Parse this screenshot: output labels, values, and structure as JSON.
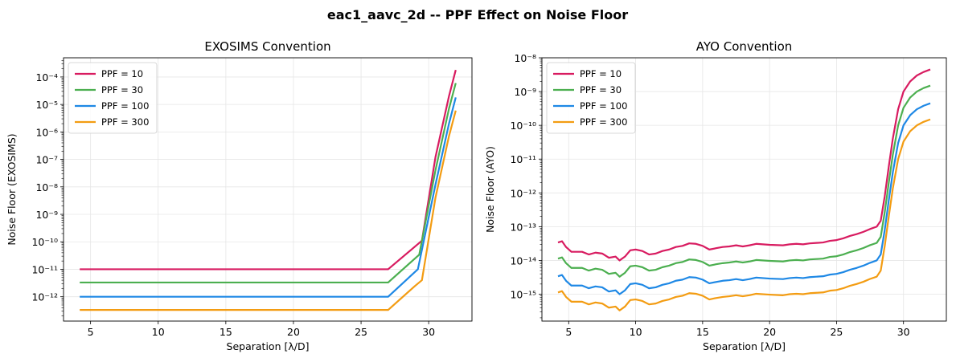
{
  "figure": {
    "suptitle": "eac1_aavc_2d -- PPF Effect on Noise Floor"
  },
  "chart_data": [
    {
      "type": "line",
      "title": "EXOSIMS Convention",
      "xlabel": "Separation [λ/D]",
      "ylabel": "Noise Floor (EXOSIMS)",
      "xscale": "linear",
      "yscale": "log",
      "xlim": [
        3,
        33.2
      ],
      "ylim": [
        1.3e-13,
        0.0005
      ],
      "xticks": [
        5,
        10,
        15,
        20,
        25,
        30
      ],
      "xtick_labels": [
        "5",
        "10",
        "15",
        "20",
        "25",
        "30"
      ],
      "yticks_exp": [
        -12,
        -11,
        -10,
        -9,
        -8,
        -7,
        -6,
        -5,
        -4
      ],
      "grid": true,
      "legend": "top-left",
      "series": [
        {
          "name": "PPF = 10",
          "color": "#d81b60",
          "x": [
            4.2,
            27.0,
            29.5,
            30.5,
            31.5,
            32.0
          ],
          "y": [
            1e-11,
            1e-11,
            1.1e-10,
            1.2e-07,
            2e-05,
            0.00018
          ]
        },
        {
          "name": "PPF = 30",
          "color": "#4caf50",
          "x": [
            4.2,
            27.0,
            29.3,
            30.5,
            31.5,
            32.0
          ],
          "y": [
            3.3e-12,
            3.3e-12,
            3.4e-11,
            4e-08,
            7e-06,
            6e-05
          ]
        },
        {
          "name": "PPF = 100",
          "color": "#1e88e5",
          "x": [
            4.2,
            27.0,
            29.2,
            30.5,
            31.5,
            32.0
          ],
          "y": [
            1e-12,
            1e-12,
            1e-11,
            1.2e-08,
            2e-06,
            1.8e-05
          ]
        },
        {
          "name": "PPF = 300",
          "color": "#f39c12",
          "x": [
            4.2,
            27.0,
            29.0,
            29.5,
            30.5,
            31.5,
            32.0
          ],
          "y": [
            3.3e-13,
            3.3e-13,
            2.5e-12,
            4e-12,
            4e-09,
            7e-07,
            6e-06
          ]
        }
      ]
    },
    {
      "type": "line",
      "title": "AYO Convention",
      "xlabel": "Separation [λ/D]",
      "ylabel": "Noise Floor (AYO)",
      "xscale": "linear",
      "yscale": "log",
      "xlim": [
        3,
        33.2
      ],
      "ylim": [
        1.6e-16,
        1e-08
      ],
      "xticks": [
        5,
        10,
        15,
        20,
        25,
        30
      ],
      "xtick_labels": [
        "5",
        "10",
        "15",
        "20",
        "25",
        "30"
      ],
      "yticks_exp": [
        -15,
        -14,
        -13,
        -12,
        -11,
        -10,
        -9,
        -8
      ],
      "grid": true,
      "legend": "top-left",
      "series": [
        {
          "name": "PPF = 10",
          "color": "#d81b60",
          "x": [
            4.2,
            4.5,
            4.8,
            5.2,
            5.6,
            6.0,
            6.5,
            7.0,
            7.5,
            8.0,
            8.5,
            8.8,
            9.2,
            9.6,
            10.0,
            10.5,
            11.0,
            11.5,
            12.0,
            12.5,
            13.0,
            13.5,
            14.0,
            14.5,
            15.0,
            15.5,
            16.0,
            16.5,
            17.0,
            17.5,
            18.0,
            18.5,
            19.0,
            20.0,
            21.0,
            21.5,
            22.0,
            22.5,
            23.0,
            23.5,
            24.0,
            24.5,
            25.0,
            25.5,
            26.0,
            26.5,
            27.0,
            27.5,
            28.0,
            28.3,
            28.6,
            28.9,
            29.2,
            29.6,
            30.0,
            30.5,
            31.0,
            31.5,
            32.0
          ],
          "y": [
            3.4e-14,
            3.7e-14,
            2.5e-14,
            1.8e-14,
            1.8e-14,
            1.8e-14,
            1.5e-14,
            1.7e-14,
            1.6e-14,
            1.2e-14,
            1.3e-14,
            1e-14,
            1.3e-14,
            2e-14,
            2.1e-14,
            1.9e-14,
            1.5e-14,
            1.6e-14,
            1.9e-14,
            2.1e-14,
            2.5e-14,
            2.7e-14,
            3.2e-14,
            3.1e-14,
            2.7e-14,
            2.1e-14,
            2.3e-14,
            2.5e-14,
            2.6e-14,
            2.8e-14,
            2.6e-14,
            2.8e-14,
            3.1e-14,
            2.9e-14,
            2.8e-14,
            3e-14,
            3.1e-14,
            3e-14,
            3.2e-14,
            3.3e-14,
            3.4e-14,
            3.8e-14,
            4e-14,
            4.5e-14,
            5.3e-14,
            6e-14,
            7e-14,
            8.5e-14,
            1e-13,
            1.5e-13,
            8e-13,
            6e-12,
            4e-11,
            3e-10,
            1e-09,
            2e-09,
            3e-09,
            3.8e-09,
            4.5e-09
          ]
        },
        {
          "name": "PPF = 30",
          "color": "#4caf50",
          "x": [
            4.2,
            4.5,
            4.8,
            5.2,
            5.6,
            6.0,
            6.5,
            7.0,
            7.5,
            8.0,
            8.5,
            8.8,
            9.2,
            9.6,
            10.0,
            10.5,
            11.0,
            11.5,
            12.0,
            12.5,
            13.0,
            13.5,
            14.0,
            14.5,
            15.0,
            15.5,
            16.0,
            16.5,
            17.0,
            17.5,
            18.0,
            18.5,
            19.0,
            20.0,
            21.0,
            21.5,
            22.0,
            22.5,
            23.0,
            23.5,
            24.0,
            24.5,
            25.0,
            25.5,
            26.0,
            26.5,
            27.0,
            27.5,
            28.0,
            28.3,
            28.6,
            28.9,
            29.2,
            29.6,
            30.0,
            30.5,
            31.0,
            31.5,
            32.0
          ],
          "y": [
            1.13e-14,
            1.23e-14,
            8.3e-15,
            6e-15,
            6e-15,
            6e-15,
            5e-15,
            5.7e-15,
            5.3e-15,
            4e-15,
            4.3e-15,
            3.3e-15,
            4.3e-15,
            6.7e-15,
            7e-15,
            6.3e-15,
            5e-15,
            5.3e-15,
            6.3e-15,
            7e-15,
            8.3e-15,
            9e-15,
            1.07e-14,
            1.03e-14,
            9e-15,
            7e-15,
            7.7e-15,
            8.3e-15,
            8.7e-15,
            9.3e-15,
            8.7e-15,
            9.3e-15,
            1.03e-14,
            9.7e-15,
            9.3e-15,
            1e-14,
            1.03e-14,
            1e-14,
            1.07e-14,
            1.1e-14,
            1.13e-14,
            1.27e-14,
            1.33e-14,
            1.5e-14,
            1.77e-14,
            2e-14,
            2.33e-14,
            2.83e-14,
            3.3e-14,
            5e-14,
            2.7e-13,
            2e-12,
            1.33e-11,
            1e-10,
            3.3e-10,
            6.7e-10,
            1e-09,
            1.27e-09,
            1.5e-09
          ]
        },
        {
          "name": "PPF = 100",
          "color": "#1e88e5",
          "x": [
            4.2,
            4.5,
            4.8,
            5.2,
            5.6,
            6.0,
            6.5,
            7.0,
            7.5,
            8.0,
            8.5,
            8.8,
            9.2,
            9.6,
            10.0,
            10.5,
            11.0,
            11.5,
            12.0,
            12.5,
            13.0,
            13.5,
            14.0,
            14.5,
            15.0,
            15.5,
            16.0,
            16.5,
            17.0,
            17.5,
            18.0,
            18.5,
            19.0,
            20.0,
            21.0,
            21.5,
            22.0,
            22.5,
            23.0,
            23.5,
            24.0,
            24.5,
            25.0,
            25.5,
            26.0,
            26.5,
            27.0,
            27.5,
            28.0,
            28.3,
            28.6,
            28.9,
            29.2,
            29.6,
            30.0,
            30.5,
            31.0,
            31.5,
            32.0
          ],
          "y": [
            3.4e-15,
            3.7e-15,
            2.5e-15,
            1.8e-15,
            1.8e-15,
            1.8e-15,
            1.5e-15,
            1.7e-15,
            1.6e-15,
            1.2e-15,
            1.3e-15,
            1e-15,
            1.3e-15,
            2e-15,
            2.1e-15,
            1.9e-15,
            1.5e-15,
            1.6e-15,
            1.9e-15,
            2.1e-15,
            2.5e-15,
            2.7e-15,
            3.2e-15,
            3.1e-15,
            2.7e-15,
            2.1e-15,
            2.3e-15,
            2.5e-15,
            2.6e-15,
            2.8e-15,
            2.6e-15,
            2.8e-15,
            3.1e-15,
            2.9e-15,
            2.8e-15,
            3e-15,
            3.1e-15,
            3e-15,
            3.2e-15,
            3.3e-15,
            3.4e-15,
            3.8e-15,
            4e-15,
            4.5e-15,
            5.3e-15,
            6e-15,
            7e-15,
            8.5e-15,
            1e-14,
            1.5e-14,
            8e-14,
            6e-13,
            4e-12,
            3e-11,
            1e-10,
            2e-10,
            3e-10,
            3.8e-10,
            4.5e-10
          ]
        },
        {
          "name": "PPF = 300",
          "color": "#f39c12",
          "x": [
            4.2,
            4.5,
            4.8,
            5.2,
            5.6,
            6.0,
            6.5,
            7.0,
            7.5,
            8.0,
            8.5,
            8.8,
            9.2,
            9.6,
            10.0,
            10.5,
            11.0,
            11.5,
            12.0,
            12.5,
            13.0,
            13.5,
            14.0,
            14.5,
            15.0,
            15.5,
            16.0,
            16.5,
            17.0,
            17.5,
            18.0,
            18.5,
            19.0,
            20.0,
            21.0,
            21.5,
            22.0,
            22.5,
            23.0,
            23.5,
            24.0,
            24.5,
            25.0,
            25.5,
            26.0,
            26.5,
            27.0,
            27.5,
            28.0,
            28.3,
            28.6,
            28.9,
            29.2,
            29.6,
            30.0,
            30.5,
            31.0,
            31.5,
            32.0
          ],
          "y": [
            1.13e-15,
            1.23e-15,
            8.3e-16,
            6e-16,
            6e-16,
            6e-16,
            5e-16,
            5.7e-16,
            5.3e-16,
            4e-16,
            4.3e-16,
            3.3e-16,
            4.3e-16,
            6.7e-16,
            7e-16,
            6.3e-16,
            5e-16,
            5.3e-16,
            6.3e-16,
            7e-16,
            8.3e-16,
            9e-16,
            1.07e-15,
            1.03e-15,
            9e-16,
            7e-16,
            7.7e-16,
            8.3e-16,
            8.7e-16,
            9.3e-16,
            8.7e-16,
            9.3e-16,
            1.03e-15,
            9.7e-16,
            9.3e-16,
            1e-15,
            1.03e-15,
            1e-15,
            1.07e-15,
            1.1e-15,
            1.13e-15,
            1.27e-15,
            1.33e-15,
            1.5e-15,
            1.77e-15,
            2e-15,
            2.33e-15,
            2.83e-15,
            3.3e-15,
            5e-15,
            2.7e-14,
            2e-13,
            1.33e-12,
            1e-11,
            3.3e-11,
            6.7e-11,
            1e-10,
            1.27e-10,
            1.5e-10
          ]
        }
      ]
    }
  ]
}
